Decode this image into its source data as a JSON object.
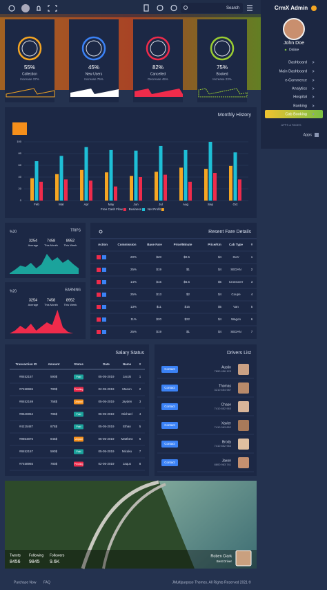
{
  "header": {
    "search": "Search",
    "logo": "CrmX Admin"
  },
  "sidebar": {
    "user": "John Doe",
    "status": "Online",
    "menu": [
      "Dashboard",
      "Main Dashboard",
      "e-Commerce",
      "Analytics",
      "Hospital",
      "Banking",
      "Cab Booking"
    ],
    "section": "APPS & PAGES",
    "apps": "Apps"
  },
  "stats": [
    {
      "value": "55%",
      "label": "Collection",
      "change": "Increase 37%",
      "color": "#f5a623"
    },
    {
      "value": "45%",
      "label": "New Users",
      "change": "Increase 75%",
      "color": "#3b82f6"
    },
    {
      "value": "82%",
      "label": "Cancelled",
      "change": "Decrease 45%",
      "color": "#ef2b4b"
    },
    {
      "value": "75%",
      "label": "Booked",
      "change": "Increase 23%",
      "color": "#9acd32"
    }
  ],
  "chart_data": {
    "type": "bar",
    "title": "Monthly History",
    "categories": [
      "Feb",
      "Mar",
      "Apr",
      "May",
      "Jun",
      "Jul",
      "Aug",
      "Sep",
      "Oct"
    ],
    "series": [
      {
        "name": "Net Profit",
        "color": "#f5a623",
        "values": [
          38,
          45,
          52,
          48,
          42,
          49,
          56,
          54,
          59
        ]
      },
      {
        "name": "Business",
        "color": "#1ebfd6",
        "values": [
          67,
          76,
          91,
          86,
          85,
          93,
          86,
          100,
          82
        ]
      },
      {
        "name": "Free Cash Flow",
        "color": "#ef2b4b",
        "values": [
          32,
          36,
          34,
          24,
          40,
          44,
          32,
          47,
          36
        ]
      }
    ],
    "legend_order": [
      2,
      1,
      0
    ],
    "ylim": [
      0,
      100
    ],
    "yticks": [
      0,
      20,
      40,
      60,
      80,
      100
    ],
    "grid": true
  },
  "trips": {
    "percent": "%20",
    "title": "TRIPS",
    "stats": [
      {
        "value": "3254",
        "label": "Average"
      },
      {
        "value": "7458",
        "label": "This Month"
      },
      {
        "value": "8952",
        "label": "This Week"
      }
    ]
  },
  "earning": {
    "percent": "%20",
    "title": "EARNING",
    "stats": [
      {
        "value": "3254",
        "label": "Average"
      },
      {
        "value": "7458",
        "label": "This Month"
      },
      {
        "value": "8952",
        "label": "This Week"
      }
    ]
  },
  "fare_table": {
    "title": "Resent Fare Details",
    "columns": [
      "Action",
      "Commission",
      "Base Fare",
      "Price/Minute",
      "Price/Km",
      "Cab Type",
      "#"
    ],
    "rows": [
      [
        "20%",
        "$20",
        "$0.5",
        "$4",
        "SUV",
        "1"
      ],
      [
        "25%",
        "$19",
        "$1",
        "$4",
        "SEDAN",
        "2"
      ],
      [
        "14%",
        "$15",
        "$6.5",
        "$5",
        "Crossover",
        "3"
      ],
      [
        "25%",
        "$13",
        "$2",
        "$4",
        "Coupe",
        "4"
      ],
      [
        "13%",
        "$11",
        "$15",
        "$5",
        "Van",
        "5"
      ],
      [
        "11%",
        "$20",
        "$22",
        "$4",
        "Wagon",
        "6"
      ],
      [
        "25%",
        "$19",
        "$1",
        "$4",
        "SEDAN",
        "7"
      ]
    ]
  },
  "salary_table": {
    "title": "Salary Status",
    "columns": [
      "Transaction ID",
      "Amount",
      "Status",
      "Date",
      "Name",
      "#"
    ],
    "rows": [
      [
        "#8452157",
        "590$",
        "Paid",
        "05-05-2019",
        "Jacob",
        "1"
      ],
      [
        "#7458965",
        "780$",
        "Pending",
        "02-05-2019",
        "Mason",
        "2"
      ],
      [
        "#8452169",
        "758$",
        "Unpaid",
        "05-05-2019",
        "Jayden",
        "3"
      ],
      [
        "#8546954",
        "785$",
        "Paid",
        "06-05-2019",
        "Michael",
        "4"
      ],
      [
        "#4215487",
        "875$",
        "Paid",
        "05-05-2019",
        "Ethan",
        "5"
      ],
      [
        "#9854876",
        "845$",
        "Unpaid",
        "06-05-2019",
        "Matthew",
        "6"
      ],
      [
        "#8452157",
        "590$",
        "Paid",
        "05-05-2019",
        "Micaku",
        "7"
      ],
      [
        "#7458965",
        "780$",
        "Pending",
        "02-05-2019",
        "Jaqus",
        "8"
      ]
    ],
    "status_colors": [
      "#1ba39c",
      "#ef2b4b",
      "#f58f1b",
      "#1ba39c",
      "#1ba39c",
      "#f58f1b",
      "#1ba39c",
      "#ef2b4b"
    ]
  },
  "drivers": {
    "title": "Drivers List",
    "button": "Contact",
    "items": [
      {
        "name": "Austin",
        "phone": "7890 456 123"
      },
      {
        "name": "Thomas",
        "phone": "3210 654 987"
      },
      {
        "name": "Chase",
        "phone": "7410 852 963"
      },
      {
        "name": "Xavier",
        "phone": "7410 963 852"
      },
      {
        "name": "Brody",
        "phone": "7410 852 963"
      },
      {
        "name": "Jaxon",
        "phone": "8800 963 741"
      }
    ]
  },
  "profile": {
    "stats": [
      {
        "label": "Tweets",
        "value": "8456"
      },
      {
        "label": "Following",
        "value": "9845"
      },
      {
        "label": "Followers",
        "value": "9.6K"
      }
    ],
    "name": "Roben Clark",
    "role": "Best Driver"
  },
  "footer": {
    "links": [
      "Purchase Now",
      "FAQ"
    ],
    "copyright": "JMultipurpose Themes. All Rights Reserved 2021 ©"
  }
}
